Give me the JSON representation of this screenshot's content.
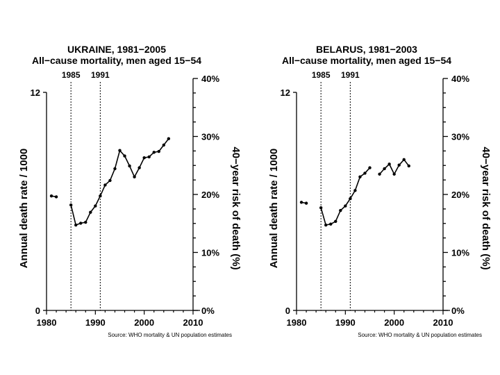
{
  "chart_data": [
    {
      "type": "line",
      "title": "UKRAINE, 1981−2005",
      "subtitle": "All−cause mortality, men aged 15−54",
      "ylabel": "Annual death rate / 1000",
      "ylabel_right": "40−year risk of death (%)",
      "xlim": [
        1980,
        2010
      ],
      "ylim": [
        0,
        12
      ],
      "xticks": [
        "1980",
        "1990",
        "2000",
        "2010"
      ],
      "yticks_left": [
        "0",
        "12"
      ],
      "yticks_right": [
        "0%",
        "10%",
        "20%",
        "30%",
        "40%"
      ],
      "markers": [
        "1985",
        "1991"
      ],
      "source": "Source: WHO mortality & UN population estimates",
      "segments": [
        {
          "x": [
            1981,
            1982
          ],
          "y": [
            6.3,
            6.25
          ]
        },
        {
          "x": [
            1985,
            1986,
            1987,
            1988,
            1989,
            1990,
            1991,
            1992,
            1993,
            1994,
            1995,
            1996,
            1997,
            1998,
            1999,
            2000,
            2001,
            2002,
            2003,
            2004,
            2005
          ],
          "y": [
            5.8,
            4.7,
            4.8,
            4.85,
            5.4,
            5.75,
            6.3,
            6.9,
            7.15,
            7.8,
            8.8,
            8.5,
            7.95,
            7.35,
            7.85,
            8.4,
            8.45,
            8.7,
            8.75,
            9.1,
            9.45
          ]
        }
      ]
    },
    {
      "type": "line",
      "title": "BELARUS, 1981−2003",
      "subtitle": "All−cause mortality, men aged 15−54",
      "ylabel": "Annual death rate / 1000",
      "ylabel_right": "40−year risk of death (%)",
      "xlim": [
        1980,
        2010
      ],
      "ylim": [
        0,
        12
      ],
      "xticks": [
        "1980",
        "1990",
        "2000",
        "2010"
      ],
      "yticks_left": [
        "0",
        "12"
      ],
      "yticks_right": [
        "0%",
        "10%",
        "20%",
        "30%",
        "40%"
      ],
      "markers": [
        "1985",
        "1991"
      ],
      "source": "Source: WHO mortality & UN population estimates",
      "segments": [
        {
          "x": [
            1981,
            1982
          ],
          "y": [
            5.95,
            5.9
          ]
        },
        {
          "x": [
            1985,
            1986,
            1987,
            1988,
            1989,
            1990,
            1991,
            1992,
            1993,
            1994,
            1995
          ],
          "y": [
            5.65,
            4.7,
            4.75,
            4.9,
            5.5,
            5.75,
            6.15,
            6.6,
            7.35,
            7.55,
            7.85
          ]
        },
        {
          "x": [
            1997,
            1998,
            1999,
            2000,
            2001,
            2002,
            2003
          ],
          "y": [
            7.5,
            7.8,
            8.05,
            7.5,
            8.0,
            8.3,
            7.95
          ]
        }
      ]
    }
  ]
}
